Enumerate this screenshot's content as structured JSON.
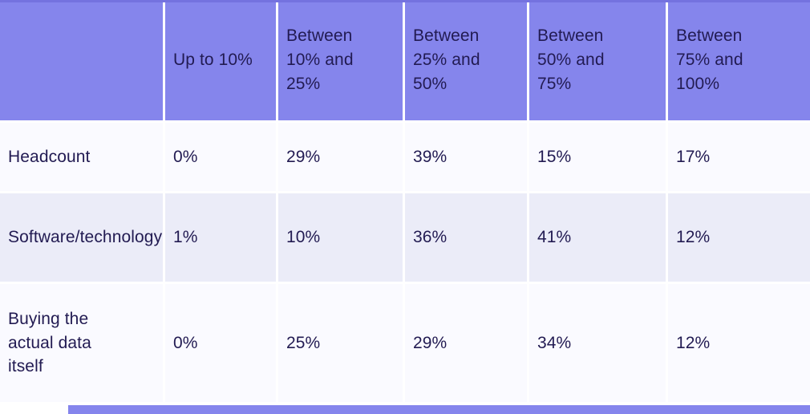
{
  "chart_data": {
    "type": "table",
    "title": "",
    "columns": [
      "",
      "Up to 10%",
      "Between 10% and 25%",
      "Between 25% and 50%",
      "Between 50% and 75%",
      "Between 75% and 100%"
    ],
    "rows": [
      {
        "label": "Headcount",
        "values": [
          "0%",
          "29%",
          "39%",
          "15%",
          "17%"
        ]
      },
      {
        "label": "Software/technology",
        "values": [
          "1%",
          "10%",
          "36%",
          "41%",
          "12%"
        ]
      },
      {
        "label": "Buying the actual data itself",
        "values": [
          "0%",
          "25%",
          "29%",
          "34%",
          "12%"
        ]
      }
    ],
    "layout": {
      "header_position": "top",
      "grid": "white gutter lines between cells",
      "row_striping": [
        "near-white",
        "lavender",
        "near-white"
      ]
    }
  },
  "colors": {
    "header_bg": "#8585ec",
    "header_top_edge": "#7472df",
    "row_bg": "#fafaff",
    "row_alt_bg": "#ebecf8",
    "text": "#221b52",
    "gutter": "#ffffff",
    "bottom_bar": "#8585ec"
  }
}
